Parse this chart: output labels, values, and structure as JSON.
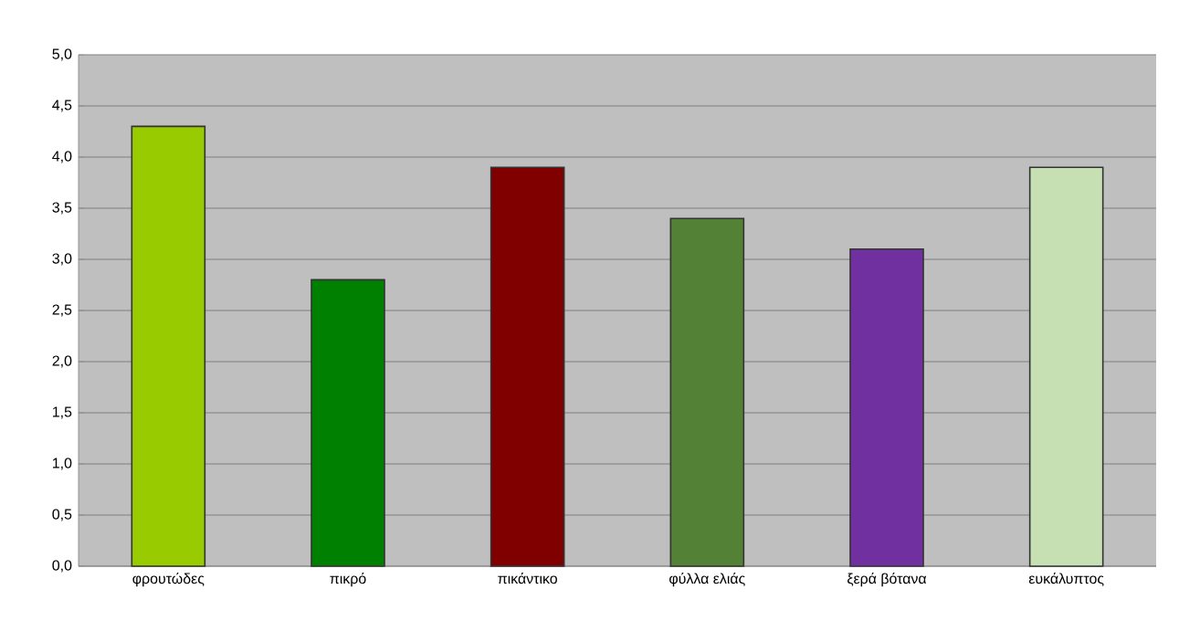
{
  "chart_data": {
    "type": "bar",
    "categories": [
      "φρουτώδες",
      "πικρό",
      "πικάντικο",
      "φύλλα ελιάς",
      "ξερά βότανα",
      "ευκάλυπτος"
    ],
    "values": [
      4.3,
      2.8,
      3.9,
      3.4,
      3.1,
      3.9
    ],
    "colors": [
      "#99cc00",
      "#008000",
      "#800000",
      "#538135",
      "#7030a0",
      "#c6e0b4"
    ],
    "ylim": [
      0,
      5
    ],
    "yticks": [
      {
        "value": 0,
        "label": "0,0"
      },
      {
        "value": 0.5,
        "label": "0,5"
      },
      {
        "value": 1,
        "label": "1,0"
      },
      {
        "value": 1.5,
        "label": "1,5"
      },
      {
        "value": 2,
        "label": "2,0"
      },
      {
        "value": 2.5,
        "label": "2,5"
      },
      {
        "value": 3,
        "label": "3,0"
      },
      {
        "value": 3.5,
        "label": "3,5"
      },
      {
        "value": 4,
        "label": "4,0"
      },
      {
        "value": 4.5,
        "label": "4,5"
      },
      {
        "value": 5,
        "label": "5,0"
      }
    ],
    "grid": "y"
  }
}
